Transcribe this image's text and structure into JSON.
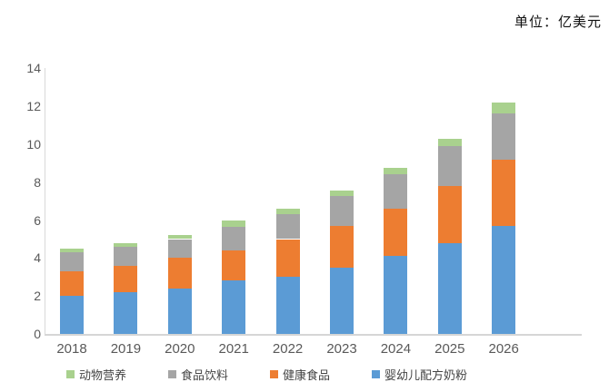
{
  "unit_label": "单位：亿美元",
  "chart_data": {
    "type": "bar",
    "stacked": true,
    "title": "",
    "unit": "亿美元",
    "categories": [
      "2018",
      "2019",
      "2020",
      "2021",
      "2022",
      "2023",
      "2024",
      "2025",
      "2026"
    ],
    "series": [
      {
        "name": "婴幼儿配方奶粉",
        "color": "#5B9BD5",
        "values": [
          2.0,
          2.2,
          2.4,
          2.8,
          3.0,
          3.5,
          4.1,
          4.8,
          5.7
        ]
      },
      {
        "name": "健康食品",
        "color": "#ED7D31",
        "values": [
          1.3,
          1.4,
          1.6,
          1.6,
          2.0,
          2.2,
          2.5,
          3.0,
          3.5
        ]
      },
      {
        "name": "食品饮料",
        "color": "#A5A5A5",
        "values": [
          1.0,
          1.0,
          1.0,
          1.25,
          1.3,
          1.55,
          1.8,
          2.1,
          2.45
        ]
      },
      {
        "name": "动物营养",
        "color": "#A9D18E",
        "values": [
          0.2,
          0.2,
          0.2,
          0.35,
          0.3,
          0.3,
          0.35,
          0.4,
          0.55
        ]
      }
    ],
    "totals": [
      4.5,
      4.8,
      5.2,
      6.0,
      6.6,
      7.55,
      8.75,
      10.3,
      12.2
    ],
    "legend_order": [
      "动物营养",
      "食品饮料",
      "健康食品",
      "婴幼儿配方奶粉"
    ],
    "legend_position": "bottom",
    "xlabel": "",
    "ylabel": "",
    "ylim": [
      0,
      14
    ],
    "yticks": [
      0,
      2,
      4,
      6,
      8,
      10,
      12,
      14
    ],
    "grid": false
  }
}
